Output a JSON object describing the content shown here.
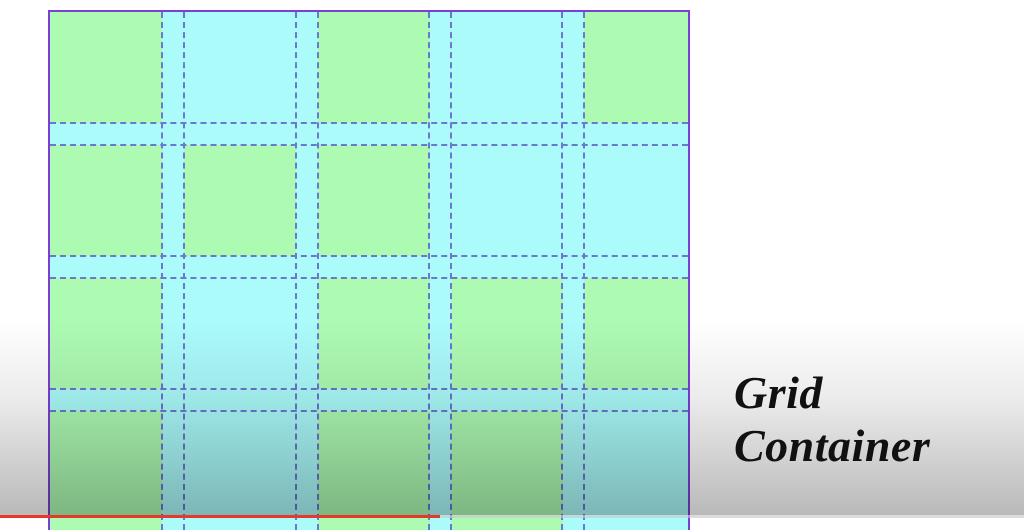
{
  "label": "Grid Container",
  "colors": {
    "item": "#adfbb3",
    "gap": "#abfbfb",
    "border": "#7b3fd6",
    "lines": "#6a78d0",
    "progress": "#e5392b"
  },
  "grid": {
    "columns": 5,
    "rows": 4,
    "cells": [
      [
        "item",
        "gap",
        "item",
        "gap",
        "item"
      ],
      [
        "item",
        "item",
        "item",
        "gap",
        "gap"
      ],
      [
        "item",
        "gap",
        "item",
        "item",
        "item"
      ],
      [
        "item",
        "gap",
        "item",
        "item",
        "gap"
      ]
    ]
  },
  "video": {
    "progress_percent": 43
  }
}
